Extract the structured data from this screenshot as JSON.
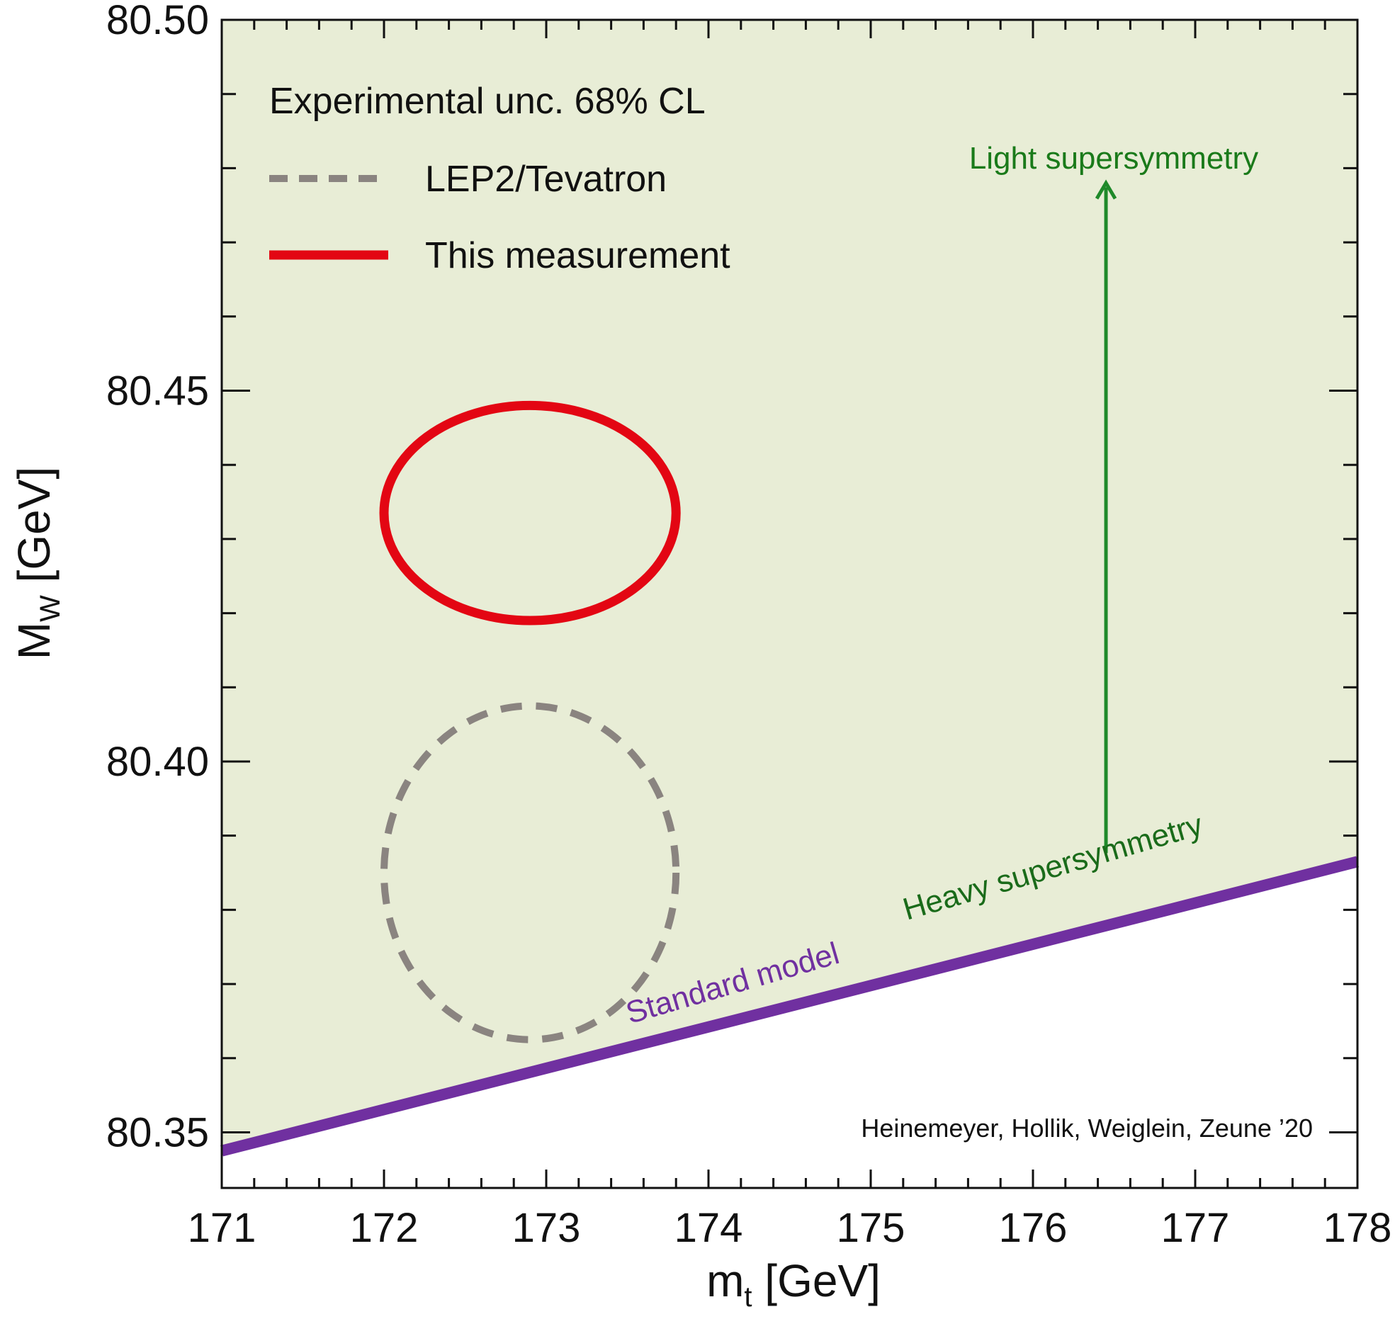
{
  "chart_data": {
    "type": "scatter",
    "xlabel": {
      "main": "m",
      "sub": "t",
      "unit": "[GeV]"
    },
    "ylabel": {
      "main": "M",
      "sub": "W",
      "unit": "[GeV]"
    },
    "xlim": [
      171,
      178
    ],
    "ylim": [
      80.3425,
      80.5
    ],
    "x_ticks": [
      "171",
      "172",
      "173",
      "174",
      "175",
      "176",
      "177",
      "178"
    ],
    "y_ticks": [
      "80.35",
      "80.40",
      "80.45",
      "80.50"
    ],
    "grid": false,
    "legend": {
      "position": "top-left",
      "header": "Experimental unc. 68% CL",
      "entries": [
        {
          "label": "LEP2/Tevatron",
          "style": "dashed",
          "color": "#8a8480"
        },
        {
          "label": "This measurement",
          "style": "solid",
          "color": "#e30613"
        }
      ]
    },
    "series": [
      {
        "name": "LEP2/Tevatron",
        "shape": "ellipse",
        "center": [
          172.9,
          80.385
        ],
        "half_width": 0.9,
        "half_height": 0.0225,
        "color": "#8a8480",
        "style": "dashed"
      },
      {
        "name": "This measurement",
        "shape": "ellipse",
        "center": [
          172.9,
          80.4335
        ],
        "half_width": 0.9,
        "half_height": 0.0145,
        "color": "#e30613",
        "style": "solid"
      },
      {
        "name": "Standard model",
        "shape": "line",
        "x": [
          171,
          178
        ],
        "y": [
          80.3475,
          80.3865
        ],
        "color": "#7030a0"
      }
    ],
    "regions": [
      {
        "name": "Heavy/Light supersymmetry region",
        "fill": "#e8edd6",
        "bounded_below_by": "Standard model"
      }
    ],
    "annotations": {
      "standard_model": {
        "text": "Standard model",
        "color": "#7030a0"
      },
      "heavy_susy": {
        "text": "Heavy supersymmetry",
        "color": "#1a6b1a"
      },
      "light_susy": {
        "text": "Light supersymmetry",
        "color": "#1a7a1a"
      },
      "arrow": {
        "x": 176.45,
        "y_from": 80.3865,
        "y_to": 80.478,
        "color": "#1f8a2a"
      },
      "credit": "Heinemeyer, Hollik, Weiglein, Zeune ’20"
    }
  }
}
